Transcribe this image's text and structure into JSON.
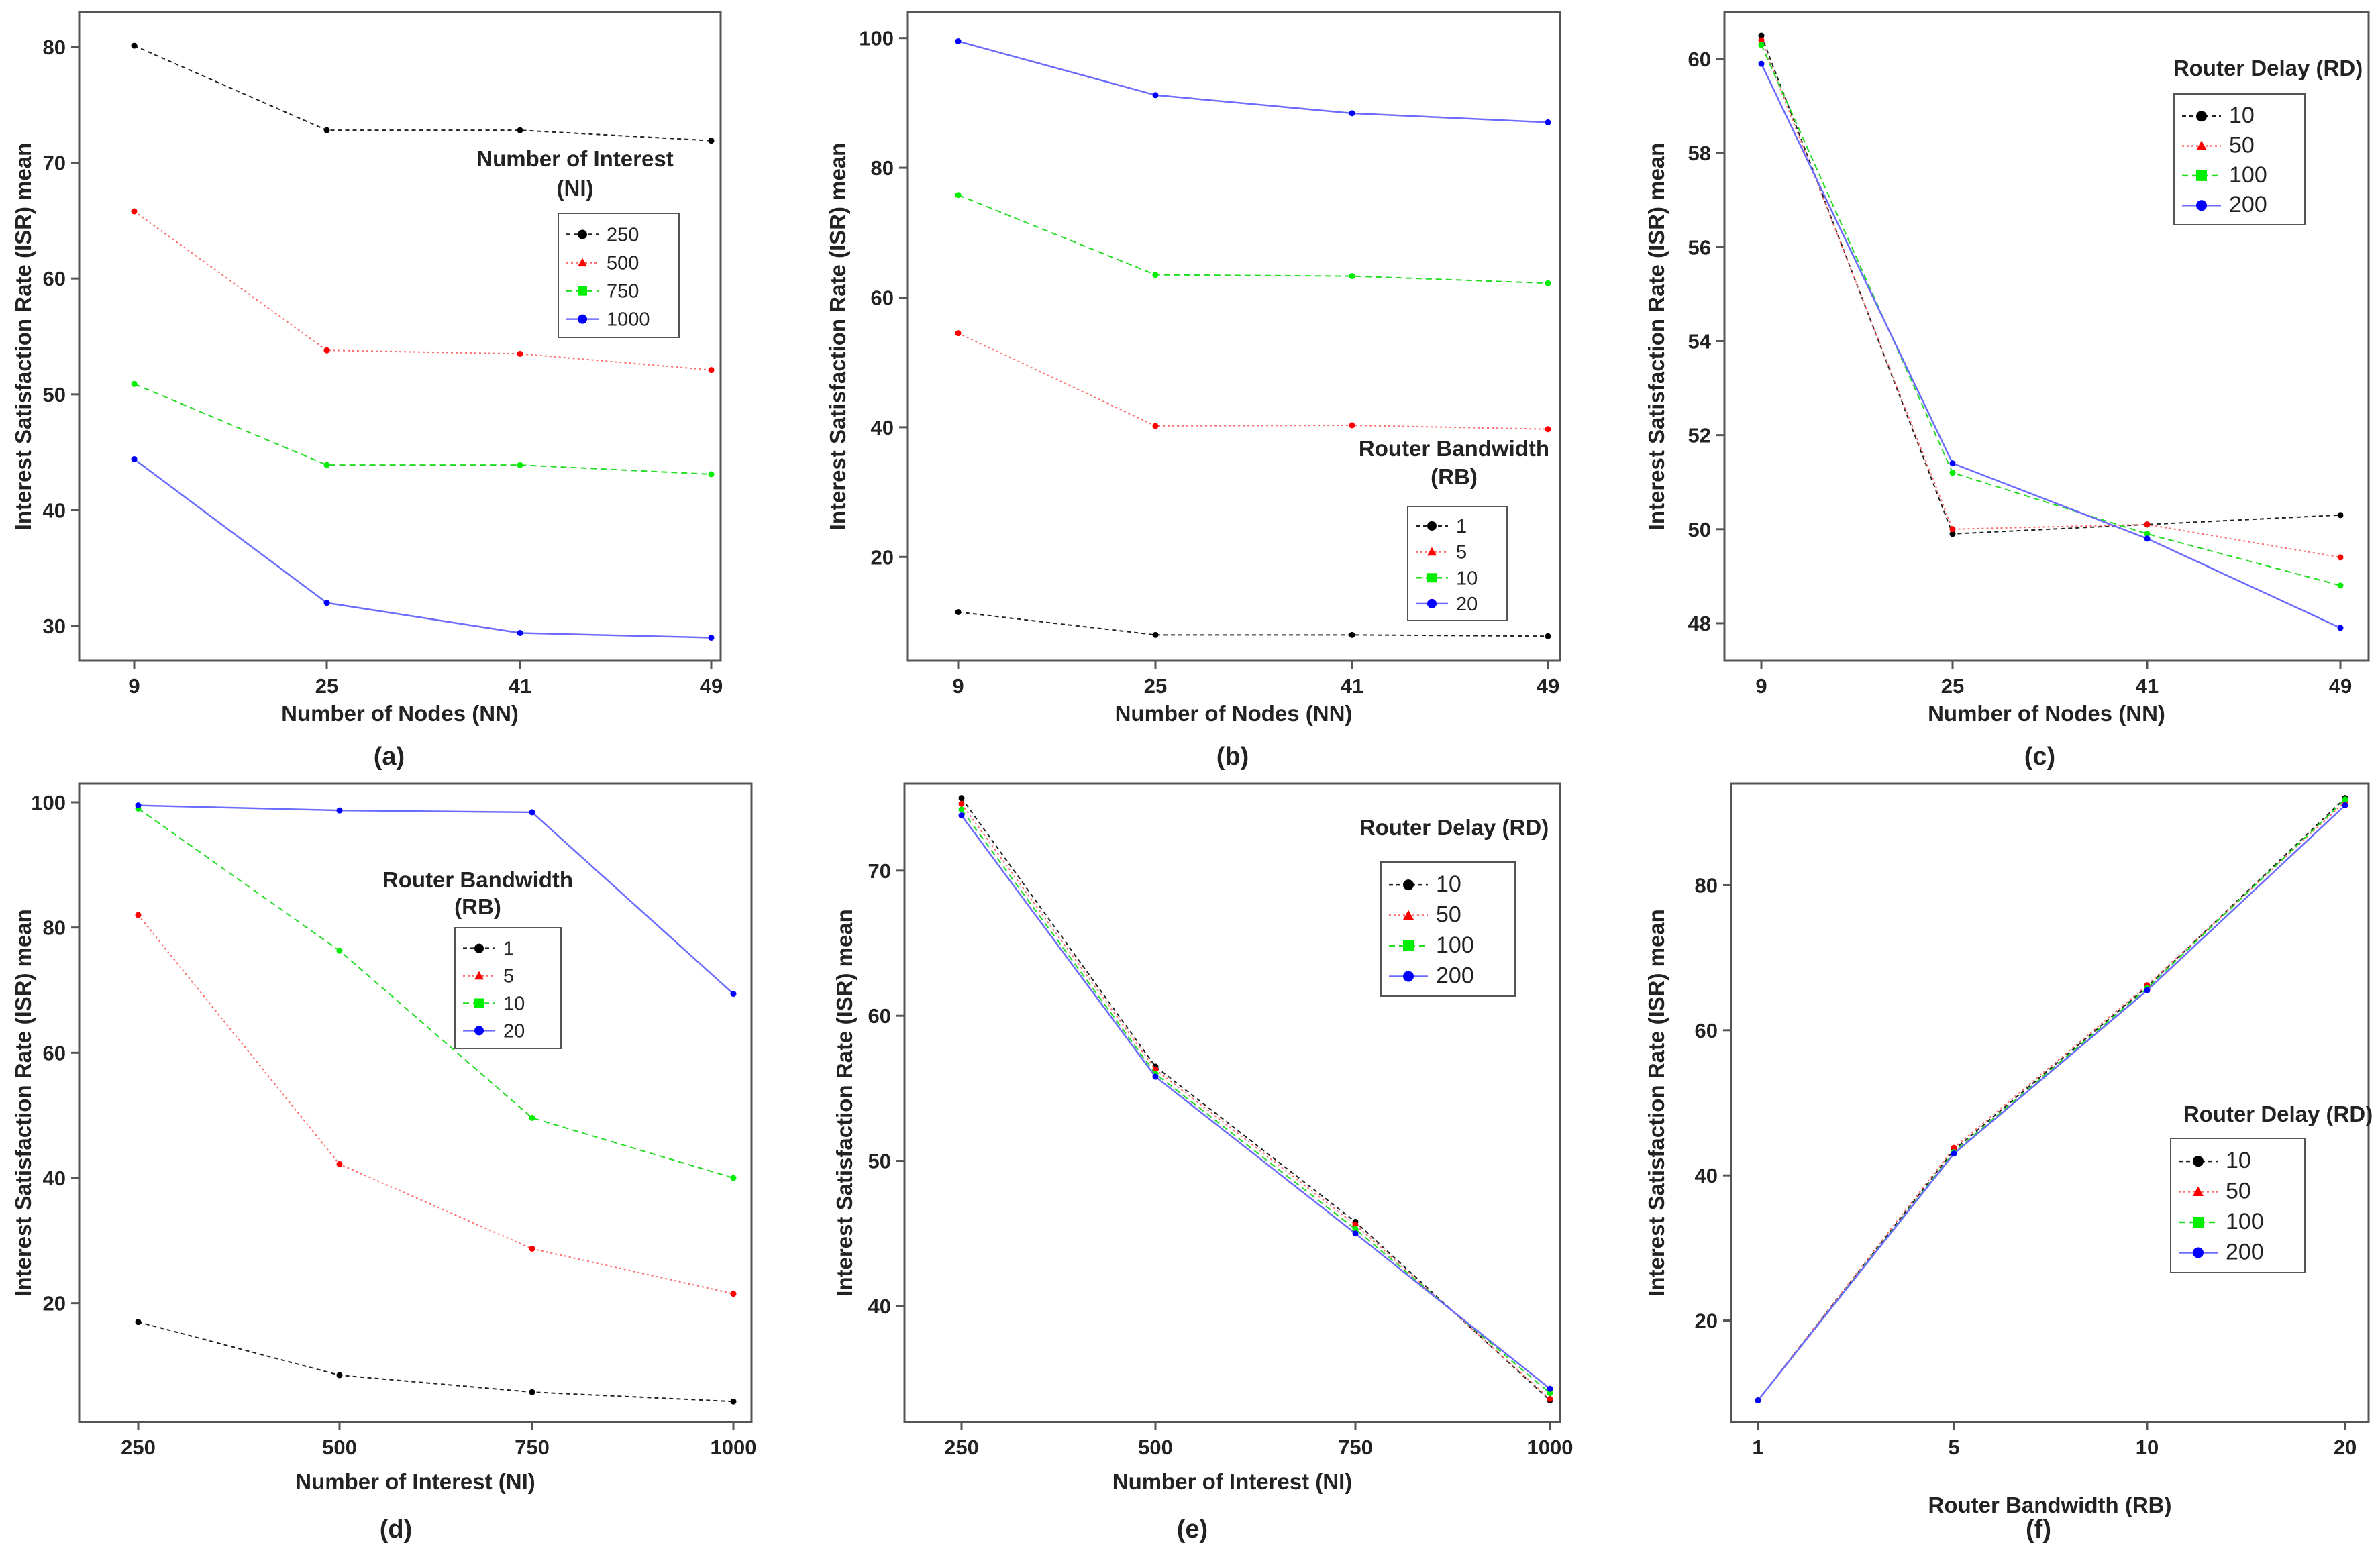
{
  "figure": {
    "captions": [
      "(a)",
      "(b)",
      "(c)",
      "(d)",
      "(e)",
      "(f)"
    ]
  },
  "colors": {
    "series_black": "#222222",
    "series_red": "#ff6b6b",
    "series_green": "#22dd22",
    "series_blue": "#6b6bff",
    "marker_black": "#000000",
    "marker_red": "#ff0000",
    "marker_green": "#00ee00",
    "marker_blue": "#0000ff",
    "frame": "#555555",
    "plot_bg": "#ffffff"
  },
  "chart_data": [
    {
      "type": "line",
      "caption": "(a)",
      "xlabel": "Number of Nodes (NN)",
      "ylabel": "Interest Satisfaction Rate (ISR) mean",
      "categories": [
        "9",
        "25",
        "41",
        "49"
      ],
      "ylim": [
        27,
        83
      ],
      "yticks": [
        30,
        40,
        50,
        60,
        70,
        80
      ],
      "legend": {
        "title_lines": [
          "Number of Interest",
          "(NI)"
        ],
        "position": "right-middle"
      },
      "series": [
        {
          "name": "250",
          "values": [
            80.1,
            72.8,
            72.8,
            71.9
          ]
        },
        {
          "name": "500",
          "values": [
            65.8,
            53.8,
            53.5,
            52.1
          ]
        },
        {
          "name": "750",
          "values": [
            50.9,
            43.9,
            43.9,
            43.1
          ]
        },
        {
          "name": "1000",
          "values": [
            44.4,
            32.0,
            29.4,
            29.0
          ]
        }
      ]
    },
    {
      "type": "line",
      "caption": "(b)",
      "xlabel": "Number of Nodes (NN)",
      "ylabel": "Interest Satisfaction Rate (ISR) mean",
      "categories": [
        "9",
        "25",
        "41",
        "49"
      ],
      "ylim": [
        4,
        104
      ],
      "yticks": [
        20,
        40,
        60,
        80,
        100
      ],
      "legend": {
        "title_lines": [
          "Router Bandwidth",
          "(RB)"
        ],
        "position": "right-bottom"
      },
      "series": [
        {
          "name": "1",
          "values": [
            11.5,
            8.0,
            8.0,
            7.8
          ]
        },
        {
          "name": "5",
          "values": [
            54.5,
            40.2,
            40.3,
            39.7
          ]
        },
        {
          "name": "10",
          "values": [
            75.8,
            63.5,
            63.3,
            62.2
          ]
        },
        {
          "name": "20",
          "values": [
            99.5,
            91.2,
            88.4,
            87.0
          ]
        }
      ]
    },
    {
      "type": "line",
      "caption": "(c)",
      "xlabel": "Number of Nodes (NN)",
      "ylabel": "Interest Satisfaction Rate (ISR) mean",
      "categories": [
        "9",
        "25",
        "41",
        "49"
      ],
      "ylim": [
        47.2,
        61
      ],
      "yticks": [
        48,
        50,
        52,
        54,
        56,
        58,
        60
      ],
      "legend": {
        "title_lines": [
          "Router Delay (RD)"
        ],
        "position": "top-right"
      },
      "series": [
        {
          "name": "10",
          "values": [
            60.5,
            49.9,
            50.1,
            50.3
          ]
        },
        {
          "name": "50",
          "values": [
            60.4,
            50.0,
            50.1,
            49.4
          ]
        },
        {
          "name": "100",
          "values": [
            60.3,
            51.2,
            49.9,
            48.8
          ]
        },
        {
          "name": "200",
          "values": [
            59.9,
            51.4,
            49.8,
            47.9
          ]
        }
      ]
    },
    {
      "type": "line",
      "caption": "(d)",
      "xlabel": "Number of Interest (NI)",
      "ylabel": "Interest Satisfaction Rate (ISR) mean",
      "categories": [
        "250",
        "500",
        "750",
        "1000"
      ],
      "ylim": [
        1,
        103
      ],
      "yticks": [
        20,
        40,
        60,
        80,
        100
      ],
      "legend": {
        "title_lines": [
          "Router Bandwidth",
          "(RB)"
        ],
        "position": "center"
      },
      "series": [
        {
          "name": "1",
          "values": [
            17.0,
            8.5,
            5.8,
            4.3
          ]
        },
        {
          "name": "5",
          "values": [
            82.0,
            42.2,
            28.7,
            21.5
          ]
        },
        {
          "name": "10",
          "values": [
            99.0,
            76.3,
            49.6,
            40.0
          ]
        },
        {
          "name": "20",
          "values": [
            99.5,
            98.7,
            98.4,
            69.4
          ]
        }
      ]
    },
    {
      "type": "line",
      "caption": "(e)",
      "xlabel": "Number of Interest (NI)",
      "ylabel": "Interest Satisfaction Rate (ISR) mean",
      "categories": [
        "250",
        "500",
        "750",
        "1000"
      ],
      "ylim": [
        32,
        76
      ],
      "yticks": [
        40,
        50,
        60,
        70
      ],
      "legend": {
        "title_lines": [
          "Router Delay (RD)"
        ],
        "position": "top-right"
      },
      "series": [
        {
          "name": "10",
          "values": [
            75.0,
            56.5,
            45.8,
            33.5
          ]
        },
        {
          "name": "50",
          "values": [
            74.6,
            56.3,
            45.6,
            33.6
          ]
        },
        {
          "name": "100",
          "values": [
            74.2,
            56.0,
            45.3,
            34.0
          ]
        },
        {
          "name": "200",
          "values": [
            73.8,
            55.8,
            45.0,
            34.3
          ]
        }
      ]
    },
    {
      "type": "line",
      "caption": "(f)",
      "xlabel": "Router Bandwidth (RB)",
      "ylabel": "Interest Satisfaction Rate (ISR) mean",
      "categories": [
        "1",
        "5",
        "10",
        "20"
      ],
      "ylim": [
        6,
        94
      ],
      "yticks": [
        20,
        40,
        60,
        80
      ],
      "legend": {
        "title_lines": [
          "Router Delay (RD)"
        ],
        "position": "right-middle"
      },
      "series": [
        {
          "name": "10",
          "values": [
            9.0,
            43.5,
            66.0,
            92.0
          ]
        },
        {
          "name": "50",
          "values": [
            9.0,
            43.8,
            66.2,
            91.5
          ]
        },
        {
          "name": "100",
          "values": [
            9.0,
            43.2,
            65.8,
            91.8
          ]
        },
        {
          "name": "200",
          "values": [
            9.0,
            43.0,
            65.5,
            91.0
          ]
        }
      ]
    }
  ]
}
